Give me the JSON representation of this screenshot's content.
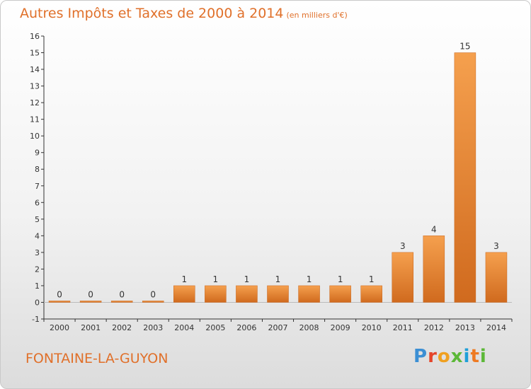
{
  "header": {
    "title": "Autres Impôts et Taxes de 2000 à 2014",
    "unit": "(en milliers d'€)"
  },
  "footer": {
    "town": "FONTAINE-LA-GUYON",
    "logo": [
      "P",
      "r",
      "o",
      "x",
      "i",
      "t",
      "i"
    ]
  },
  "colors": {
    "bar_light": "#f5a04e",
    "bar_dark": "#d06a1e",
    "title": "#e0702a"
  },
  "chart_data": {
    "type": "bar",
    "title": "Autres Impôts et Taxes de 2000 à 2014",
    "subtitle": "(en milliers d'€)",
    "categories": [
      "2000",
      "2001",
      "2002",
      "2003",
      "2004",
      "2005",
      "2006",
      "2007",
      "2008",
      "2009",
      "2010",
      "2011",
      "2012",
      "2013",
      "2014"
    ],
    "values": [
      0,
      0,
      0,
      0,
      1,
      1,
      1,
      1,
      1,
      1,
      1,
      3,
      4,
      15,
      3
    ],
    "data_labels": [
      "0",
      "0",
      "0",
      "0",
      "1",
      "1",
      "1",
      "1",
      "1",
      "1",
      "1",
      "3",
      "4",
      "15",
      "3"
    ],
    "yticks": [
      -1,
      0,
      1,
      2,
      3,
      4,
      5,
      6,
      7,
      8,
      9,
      10,
      11,
      12,
      13,
      14,
      15,
      16
    ],
    "ytick_labels": [
      "-1",
      "0",
      "1",
      "2",
      "3",
      "4",
      "5",
      "6",
      "7",
      "8",
      "9",
      "10",
      "11",
      "12",
      "13",
      "14",
      "15",
      "16"
    ],
    "ylim": [
      -1,
      16
    ],
    "grid": false,
    "legend": "none"
  }
}
